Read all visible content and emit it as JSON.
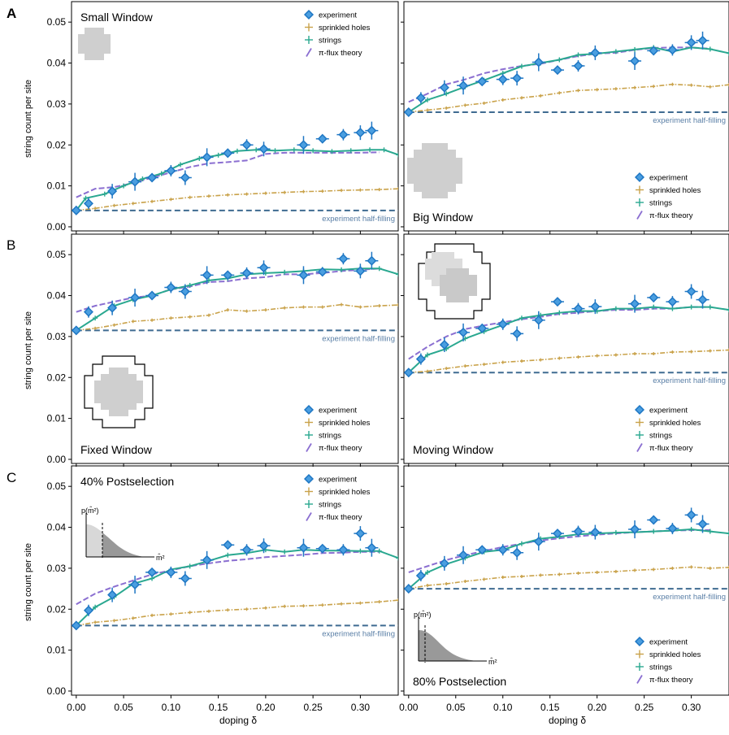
{
  "figure": {
    "xlabel": "doping δ",
    "ylabel": "string count per site",
    "panel_letters": [
      "A",
      "B",
      "C"
    ],
    "xticks": [
      "0.00",
      "0.05",
      "0.10",
      "0.15",
      "0.20",
      "0.25",
      "0.30"
    ],
    "yticks": [
      "0.00",
      "0.01",
      "0.02",
      "0.03",
      "0.04",
      "0.05"
    ],
    "legend": [
      "experiment",
      "sprinkled holes",
      "strings",
      "π-flux theory"
    ],
    "half_filling_label": "experiment half-filling",
    "colors": {
      "experiment": "#1f77c4",
      "sprinkled": "#c9a24a",
      "strings": "#2aa890",
      "theory": "#8b6fd1",
      "halffill": "#3f6b91"
    }
  },
  "chart_data": [
    {
      "type": "line",
      "panel": "A-left",
      "title": "Small Window",
      "xlim": [
        -0.005,
        0.34
      ],
      "ylim": [
        -0.001,
        0.055
      ],
      "half_filling": 0.004,
      "experiment": {
        "x": [
          0.0,
          0.013,
          0.038,
          0.062,
          0.08,
          0.1,
          0.115,
          0.138,
          0.16,
          0.18,
          0.198,
          0.24,
          0.26,
          0.282,
          0.3,
          0.312
        ],
        "y": [
          0.004,
          0.0057,
          0.0087,
          0.011,
          0.012,
          0.0137,
          0.012,
          0.017,
          0.018,
          0.02,
          0.019,
          0.02,
          0.0215,
          0.0225,
          0.023,
          0.0235
        ]
      },
      "strings": {
        "x": [
          0.0,
          0.01,
          0.03,
          0.05,
          0.07,
          0.09,
          0.11,
          0.13,
          0.15,
          0.17,
          0.19,
          0.21,
          0.23,
          0.25,
          0.27,
          0.29,
          0.31,
          0.325,
          0.34
        ],
        "y": [
          0.004,
          0.007,
          0.008,
          0.01,
          0.0117,
          0.013,
          0.0152,
          0.0167,
          0.0175,
          0.0185,
          0.0188,
          0.0186,
          0.0188,
          0.0186,
          0.0184,
          0.0186,
          0.0188,
          0.0188,
          0.0176
        ]
      },
      "sprinkled": {
        "x": [
          0.0,
          0.02,
          0.04,
          0.06,
          0.08,
          0.1,
          0.12,
          0.14,
          0.16,
          0.18,
          0.2,
          0.22,
          0.24,
          0.26,
          0.28,
          0.3,
          0.32,
          0.34
        ],
        "y": [
          0.004,
          0.0045,
          0.0052,
          0.0057,
          0.0062,
          0.0067,
          0.0072,
          0.0075,
          0.0078,
          0.008,
          0.0082,
          0.0084,
          0.0086,
          0.0087,
          0.0089,
          0.009,
          0.0091,
          0.0093
        ]
      },
      "theory": {
        "x": [
          0.0,
          0.02,
          0.04,
          0.06,
          0.08,
          0.1,
          0.12,
          0.14,
          0.16,
          0.18,
          0.2,
          0.22,
          0.24,
          0.26,
          0.28,
          0.3,
          0.32
        ],
        "y": [
          0.0072,
          0.0093,
          0.0097,
          0.0107,
          0.012,
          0.0133,
          0.0146,
          0.0155,
          0.0158,
          0.0162,
          0.0178,
          0.0181,
          0.0181,
          0.0181,
          0.0181,
          0.0181,
          0.0182
        ]
      }
    },
    {
      "type": "line",
      "panel": "A-right",
      "title": "Big Window",
      "xlim": [
        -0.005,
        0.34
      ],
      "ylim": [
        -0.001,
        0.055
      ],
      "half_filling": 0.028,
      "experiment": {
        "x": [
          0.0,
          0.013,
          0.038,
          0.058,
          0.078,
          0.1,
          0.115,
          0.138,
          0.158,
          0.18,
          0.198,
          0.24,
          0.26,
          0.28,
          0.3,
          0.312
        ],
        "y": [
          0.028,
          0.0315,
          0.034,
          0.0345,
          0.0355,
          0.036,
          0.0363,
          0.0402,
          0.0383,
          0.0393,
          0.0425,
          0.0405,
          0.043,
          0.0432,
          0.045,
          0.0455
        ]
      },
      "strings": {
        "x": [
          0.0,
          0.02,
          0.04,
          0.06,
          0.08,
          0.1,
          0.12,
          0.14,
          0.16,
          0.18,
          0.2,
          0.22,
          0.24,
          0.26,
          0.28,
          0.3,
          0.32,
          0.34
        ],
        "y": [
          0.028,
          0.031,
          0.0325,
          0.0342,
          0.0358,
          0.0375,
          0.0392,
          0.04,
          0.0408,
          0.042,
          0.0423,
          0.0428,
          0.0433,
          0.0438,
          0.0428,
          0.0438,
          0.0434,
          0.0424
        ]
      },
      "sprinkled": {
        "x": [
          0.0,
          0.02,
          0.04,
          0.06,
          0.08,
          0.1,
          0.12,
          0.14,
          0.16,
          0.18,
          0.2,
          0.22,
          0.24,
          0.26,
          0.28,
          0.3,
          0.32,
          0.34
        ],
        "y": [
          0.028,
          0.0285,
          0.029,
          0.0297,
          0.0302,
          0.031,
          0.0315,
          0.032,
          0.0327,
          0.0333,
          0.0335,
          0.0337,
          0.034,
          0.0343,
          0.0348,
          0.0346,
          0.0342,
          0.0347
        ]
      },
      "theory": {
        "x": [
          0.0,
          0.02,
          0.04,
          0.06,
          0.08,
          0.1,
          0.12,
          0.14,
          0.16,
          0.18,
          0.2,
          0.22,
          0.24,
          0.26,
          0.28,
          0.3,
          0.32
        ],
        "y": [
          0.0305,
          0.0325,
          0.0348,
          0.036,
          0.0375,
          0.0385,
          0.0393,
          0.0398,
          0.0408,
          0.0417,
          0.0423,
          0.0425,
          0.0432,
          0.0437,
          0.0438,
          0.0438,
          0.0435
        ]
      }
    },
    {
      "type": "line",
      "panel": "B-left",
      "title": "Fixed Window",
      "xlim": [
        -0.005,
        0.34
      ],
      "ylim": [
        -0.001,
        0.055
      ],
      "half_filling": 0.0315,
      "experiment": {
        "x": [
          0.0,
          0.013,
          0.038,
          0.062,
          0.08,
          0.1,
          0.115,
          0.138,
          0.16,
          0.18,
          0.198,
          0.24,
          0.26,
          0.282,
          0.3,
          0.312
        ],
        "y": [
          0.0315,
          0.036,
          0.037,
          0.0395,
          0.04,
          0.042,
          0.041,
          0.045,
          0.045,
          0.0455,
          0.0468,
          0.045,
          0.0458,
          0.049,
          0.046,
          0.0485
        ]
      },
      "strings": {
        "x": [
          0.0,
          0.02,
          0.04,
          0.06,
          0.08,
          0.1,
          0.12,
          0.14,
          0.16,
          0.18,
          0.2,
          0.22,
          0.24,
          0.26,
          0.28,
          0.3,
          0.32,
          0.34
        ],
        "y": [
          0.0315,
          0.0345,
          0.0375,
          0.039,
          0.04,
          0.0415,
          0.0425,
          0.0437,
          0.0442,
          0.0452,
          0.0455,
          0.0457,
          0.046,
          0.0464,
          0.0463,
          0.0466,
          0.0466,
          0.0452
        ]
      },
      "sprinkled": {
        "x": [
          0.0,
          0.02,
          0.04,
          0.06,
          0.08,
          0.1,
          0.12,
          0.14,
          0.16,
          0.18,
          0.2,
          0.22,
          0.24,
          0.26,
          0.28,
          0.3,
          0.32,
          0.34
        ],
        "y": [
          0.0315,
          0.032,
          0.0328,
          0.0337,
          0.034,
          0.0345,
          0.0348,
          0.0352,
          0.0365,
          0.0362,
          0.0365,
          0.037,
          0.0372,
          0.0372,
          0.0378,
          0.0372,
          0.0375,
          0.0377
        ]
      },
      "theory": {
        "x": [
          0.0,
          0.02,
          0.04,
          0.06,
          0.08,
          0.1,
          0.12,
          0.14,
          0.16,
          0.18,
          0.2,
          0.22,
          0.24,
          0.26,
          0.28,
          0.3,
          0.32
        ],
        "y": [
          0.036,
          0.0375,
          0.0385,
          0.0395,
          0.04,
          0.0415,
          0.0422,
          0.0433,
          0.0435,
          0.0442,
          0.0445,
          0.0452,
          0.0452,
          0.0455,
          0.046,
          0.0463,
          0.0466
        ]
      }
    },
    {
      "type": "line",
      "panel": "B-right",
      "title": "Moving Window",
      "xlim": [
        -0.005,
        0.34
      ],
      "ylim": [
        -0.001,
        0.055
      ],
      "half_filling": 0.0212,
      "experiment": {
        "x": [
          0.0,
          0.013,
          0.038,
          0.058,
          0.078,
          0.1,
          0.115,
          0.138,
          0.158,
          0.18,
          0.198,
          0.24,
          0.26,
          0.28,
          0.3,
          0.312
        ],
        "y": [
          0.0212,
          0.0245,
          0.028,
          0.031,
          0.032,
          0.033,
          0.0307,
          0.034,
          0.0385,
          0.0368,
          0.0373,
          0.038,
          0.0395,
          0.0385,
          0.041,
          0.039
        ]
      },
      "strings": {
        "x": [
          0.0,
          0.02,
          0.04,
          0.06,
          0.08,
          0.1,
          0.12,
          0.14,
          0.16,
          0.18,
          0.2,
          0.22,
          0.24,
          0.26,
          0.28,
          0.3,
          0.32,
          0.34
        ],
        "y": [
          0.0212,
          0.0255,
          0.027,
          0.0295,
          0.0312,
          0.0328,
          0.0345,
          0.0352,
          0.0358,
          0.0362,
          0.0362,
          0.0368,
          0.0368,
          0.0372,
          0.0368,
          0.0372,
          0.0372,
          0.0365
        ]
      },
      "sprinkled": {
        "x": [
          0.0,
          0.02,
          0.04,
          0.06,
          0.08,
          0.1,
          0.12,
          0.14,
          0.16,
          0.18,
          0.2,
          0.22,
          0.24,
          0.26,
          0.28,
          0.3,
          0.32,
          0.34
        ],
        "y": [
          0.0212,
          0.0215,
          0.0222,
          0.0228,
          0.0232,
          0.0237,
          0.024,
          0.0243,
          0.0247,
          0.025,
          0.0253,
          0.0255,
          0.0258,
          0.0258,
          0.0262,
          0.0263,
          0.0265,
          0.0267
        ]
      },
      "theory": {
        "x": [
          0.0,
          0.02,
          0.04,
          0.06,
          0.08,
          0.1,
          0.12,
          0.14,
          0.16,
          0.18,
          0.2,
          0.22,
          0.24,
          0.26,
          0.28,
          0.3,
          0.32
        ],
        "y": [
          0.0245,
          0.0275,
          0.03,
          0.0318,
          0.0327,
          0.0335,
          0.0342,
          0.0348,
          0.0355,
          0.0358,
          0.0362,
          0.0365,
          0.0365,
          0.0368,
          0.0368,
          0.0372,
          0.0372
        ]
      }
    },
    {
      "type": "line",
      "panel": "C-left",
      "title": "40% Postselection",
      "xlim": [
        -0.005,
        0.34
      ],
      "ylim": [
        -0.001,
        0.055
      ],
      "half_filling": 0.016,
      "experiment": {
        "x": [
          0.0,
          0.013,
          0.038,
          0.062,
          0.08,
          0.1,
          0.115,
          0.138,
          0.16,
          0.18,
          0.198,
          0.24,
          0.26,
          0.282,
          0.3,
          0.312
        ],
        "y": [
          0.016,
          0.0197,
          0.0235,
          0.026,
          0.029,
          0.029,
          0.0275,
          0.032,
          0.0357,
          0.0345,
          0.0355,
          0.035,
          0.0348,
          0.0345,
          0.0385,
          0.035
        ]
      },
      "strings": {
        "x": [
          0.0,
          0.02,
          0.04,
          0.06,
          0.08,
          0.1,
          0.12,
          0.14,
          0.16,
          0.18,
          0.2,
          0.22,
          0.24,
          0.26,
          0.28,
          0.3,
          0.32,
          0.34
        ],
        "y": [
          0.016,
          0.0205,
          0.023,
          0.0262,
          0.0275,
          0.0297,
          0.0305,
          0.0318,
          0.0332,
          0.0337,
          0.0345,
          0.034,
          0.0345,
          0.0343,
          0.0343,
          0.0342,
          0.0342,
          0.0325
        ]
      },
      "sprinkled": {
        "x": [
          0.0,
          0.02,
          0.04,
          0.06,
          0.08,
          0.1,
          0.12,
          0.14,
          0.16,
          0.18,
          0.2,
          0.22,
          0.24,
          0.26,
          0.28,
          0.3,
          0.32,
          0.34
        ],
        "y": [
          0.016,
          0.0168,
          0.0172,
          0.0178,
          0.0185,
          0.0188,
          0.0192,
          0.0195,
          0.0198,
          0.02,
          0.0203,
          0.0207,
          0.0208,
          0.021,
          0.0213,
          0.0215,
          0.0218,
          0.0222
        ]
      },
      "theory": {
        "x": [
          0.0,
          0.02,
          0.04,
          0.06,
          0.08,
          0.1,
          0.12,
          0.14,
          0.16,
          0.18,
          0.2,
          0.22,
          0.24,
          0.26,
          0.28,
          0.3,
          0.32
        ],
        "y": [
          0.0212,
          0.0238,
          0.0255,
          0.027,
          0.0285,
          0.0295,
          0.0305,
          0.0312,
          0.0318,
          0.0322,
          0.0327,
          0.033,
          0.0333,
          0.0337,
          0.0338,
          0.034,
          0.034
        ]
      }
    },
    {
      "type": "line",
      "panel": "C-right",
      "title": "80% Postselection",
      "xlim": [
        -0.005,
        0.34
      ],
      "ylim": [
        -0.001,
        0.055
      ],
      "half_filling": 0.025,
      "experiment": {
        "x": [
          0.0,
          0.013,
          0.038,
          0.058,
          0.078,
          0.1,
          0.115,
          0.138,
          0.158,
          0.18,
          0.198,
          0.24,
          0.26,
          0.28,
          0.3,
          0.312
        ],
        "y": [
          0.025,
          0.0282,
          0.0312,
          0.0332,
          0.0345,
          0.0345,
          0.0338,
          0.0365,
          0.0385,
          0.039,
          0.0388,
          0.0395,
          0.0418,
          0.0397,
          0.043,
          0.0408
        ]
      },
      "strings": {
        "x": [
          0.0,
          0.02,
          0.04,
          0.06,
          0.08,
          0.1,
          0.12,
          0.14,
          0.16,
          0.18,
          0.2,
          0.22,
          0.24,
          0.26,
          0.28,
          0.3,
          0.32,
          0.34
        ],
        "y": [
          0.025,
          0.029,
          0.031,
          0.0325,
          0.034,
          0.0345,
          0.036,
          0.0372,
          0.0377,
          0.0383,
          0.0385,
          0.0387,
          0.0388,
          0.039,
          0.0392,
          0.0395,
          0.039,
          0.0385
        ]
      },
      "sprinkled": {
        "x": [
          0.0,
          0.02,
          0.04,
          0.06,
          0.08,
          0.1,
          0.12,
          0.14,
          0.16,
          0.18,
          0.2,
          0.22,
          0.24,
          0.26,
          0.28,
          0.3,
          0.32,
          0.34
        ],
        "y": [
          0.025,
          0.0258,
          0.0262,
          0.0268,
          0.0273,
          0.0278,
          0.028,
          0.0283,
          0.0285,
          0.0288,
          0.029,
          0.0292,
          0.0295,
          0.0297,
          0.03,
          0.0303,
          0.03,
          0.0302
        ]
      },
      "theory": {
        "x": [
          0.0,
          0.02,
          0.04,
          0.06,
          0.08,
          0.1,
          0.12,
          0.14,
          0.16,
          0.18,
          0.2,
          0.22,
          0.24,
          0.26,
          0.28,
          0.3,
          0.32
        ],
        "y": [
          0.029,
          0.0305,
          0.032,
          0.0332,
          0.0342,
          0.0352,
          0.036,
          0.0368,
          0.0373,
          0.0378,
          0.0382,
          0.0385,
          0.0388,
          0.039,
          0.0392,
          0.0393,
          0.0393
        ]
      }
    }
  ]
}
